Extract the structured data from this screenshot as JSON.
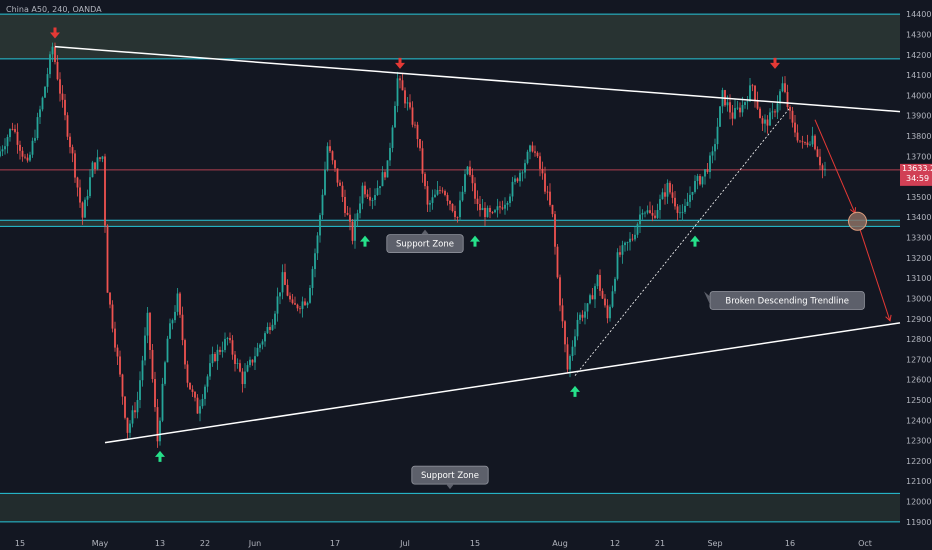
{
  "chart_data": {
    "type": "candlestick",
    "symbol": "China A50, 240, OANDA",
    "current_price": "13633.2",
    "countdown": "34:59",
    "ylim": [
      11850,
      14450
    ],
    "y_ticks": [
      11900,
      12000,
      12100,
      12200,
      12300,
      12400,
      12500,
      12600,
      12700,
      12800,
      12900,
      13000,
      13100,
      13200,
      13300,
      13400,
      13500,
      13600,
      13700,
      13800,
      13900,
      14000,
      14100,
      14200,
      14300,
      14400
    ],
    "x_ticks": [
      {
        "label": "15",
        "day": 15
      },
      {
        "label": "May",
        "day": 31
      },
      {
        "label": "13",
        "day": 43
      },
      {
        "label": "22",
        "day": 52
      },
      {
        "label": "Jun",
        "day": 62
      },
      {
        "label": "17",
        "day": 78
      },
      {
        "label": "Jul",
        "day": 92
      },
      {
        "label": "15",
        "day": 106
      },
      {
        "label": "Aug",
        "day": 123
      },
      {
        "label": "12",
        "day": 134
      },
      {
        "label": "21",
        "day": 143
      },
      {
        "label": "Sep",
        "day": 154
      },
      {
        "label": "16",
        "day": 169
      },
      {
        "label": "Oct",
        "day": 184
      }
    ],
    "x_range_days": [
      11,
      191
    ],
    "ohlc_keypoints": [
      {
        "day": 11,
        "price": 13700
      },
      {
        "day": 14,
        "price": 13850
      },
      {
        "day": 17,
        "price": 13650
      },
      {
        "day": 20,
        "price": 13980
      },
      {
        "day": 22,
        "price": 14240
      },
      {
        "day": 24,
        "price": 13950
      },
      {
        "day": 26,
        "price": 13700
      },
      {
        "day": 28,
        "price": 13400
      },
      {
        "day": 30,
        "price": 13650
      },
      {
        "day": 32,
        "price": 13700
      },
      {
        "day": 33,
        "price": 13050
      },
      {
        "day": 35,
        "price": 12700
      },
      {
        "day": 37,
        "price": 12350
      },
      {
        "day": 39,
        "price": 12500
      },
      {
        "day": 41,
        "price": 12900
      },
      {
        "day": 43,
        "price": 12300
      },
      {
        "day": 45,
        "price": 12800
      },
      {
        "day": 47,
        "price": 13000
      },
      {
        "day": 49,
        "price": 12600
      },
      {
        "day": 51,
        "price": 12450
      },
      {
        "day": 54,
        "price": 12700
      },
      {
        "day": 57,
        "price": 12800
      },
      {
        "day": 60,
        "price": 12600
      },
      {
        "day": 63,
        "price": 12750
      },
      {
        "day": 66,
        "price": 12900
      },
      {
        "day": 68,
        "price": 13100
      },
      {
        "day": 70,
        "price": 12950
      },
      {
        "day": 73,
        "price": 13000
      },
      {
        "day": 75,
        "price": 13300
      },
      {
        "day": 77,
        "price": 13750
      },
      {
        "day": 80,
        "price": 13500
      },
      {
        "day": 82,
        "price": 13300
      },
      {
        "day": 84,
        "price": 13550
      },
      {
        "day": 86,
        "price": 13500
      },
      {
        "day": 89,
        "price": 13650
      },
      {
        "day": 91,
        "price": 14080
      },
      {
        "day": 93,
        "price": 13950
      },
      {
        "day": 95,
        "price": 13800
      },
      {
        "day": 97,
        "price": 13450
      },
      {
        "day": 100,
        "price": 13550
      },
      {
        "day": 103,
        "price": 13400
      },
      {
        "day": 105,
        "price": 13650
      },
      {
        "day": 107,
        "price": 13450
      },
      {
        "day": 110,
        "price": 13400
      },
      {
        "day": 113,
        "price": 13500
      },
      {
        "day": 116,
        "price": 13650
      },
      {
        "day": 118,
        "price": 13750
      },
      {
        "day": 120,
        "price": 13600
      },
      {
        "day": 122,
        "price": 13400
      },
      {
        "day": 123,
        "price": 13100
      },
      {
        "day": 125,
        "price": 12650
      },
      {
        "day": 127,
        "price": 12900
      },
      {
        "day": 129,
        "price": 12950
      },
      {
        "day": 131,
        "price": 13100
      },
      {
        "day": 133,
        "price": 12900
      },
      {
        "day": 135,
        "price": 13200
      },
      {
        "day": 138,
        "price": 13300
      },
      {
        "day": 140,
        "price": 13450
      },
      {
        "day": 142,
        "price": 13400
      },
      {
        "day": 145,
        "price": 13550
      },
      {
        "day": 148,
        "price": 13400
      },
      {
        "day": 150,
        "price": 13550
      },
      {
        "day": 152,
        "price": 13600
      },
      {
        "day": 154,
        "price": 13700
      },
      {
        "day": 156,
        "price": 14000
      },
      {
        "day": 158,
        "price": 13900
      },
      {
        "day": 160,
        "price": 13950
      },
      {
        "day": 162,
        "price": 14050
      },
      {
        "day": 164,
        "price": 13850
      },
      {
        "day": 166,
        "price": 13900
      },
      {
        "day": 168,
        "price": 14050
      },
      {
        "day": 170,
        "price": 13850
      },
      {
        "day": 172,
        "price": 13750
      },
      {
        "day": 174,
        "price": 13800
      },
      {
        "day": 176,
        "price": 13633
      }
    ],
    "zones": [
      {
        "name": "resistance-zone",
        "from": 14180,
        "to": 14400,
        "color": "#3a4a3f"
      },
      {
        "name": "support-zone-mid",
        "from": 13355,
        "to": 13385,
        "color": "#3a4a3f"
      },
      {
        "name": "support-zone-bottom",
        "from": 11900,
        "to": 12040,
        "color": "#2f3e37"
      }
    ],
    "horizontal_lines": [
      {
        "price": 14400,
        "color": "#26c6da"
      },
      {
        "price": 14180,
        "color": "#26c6da"
      },
      {
        "price": 13385,
        "color": "#26c6da"
      },
      {
        "price": 13355,
        "color": "#26c6da"
      },
      {
        "price": 12040,
        "color": "#26c6da"
      },
      {
        "price": 11900,
        "color": "#26c6da"
      },
      {
        "price": 13633,
        "color": "#b04050"
      }
    ],
    "trendlines": [
      {
        "name": "descending-trendline",
        "from": {
          "day": 22,
          "price": 14240
        },
        "to": {
          "day": 191,
          "price": 13920
        },
        "color": "#ffffff",
        "style": "solid"
      },
      {
        "name": "ascending-trendline",
        "from": {
          "day": 32,
          "price": 12290
        },
        "to": {
          "day": 191,
          "price": 12880
        },
        "color": "#ffffff",
        "style": "solid"
      },
      {
        "name": "broken-descending-trendline",
        "from": {
          "day": 126,
          "price": 12620
        },
        "to": {
          "day": 169,
          "price": 13940
        },
        "color": "#ffffff",
        "style": "dashed"
      }
    ],
    "projection": [
      {
        "from": {
          "day": 174,
          "price": 13880
        },
        "to": {
          "day": 182,
          "price": 13420
        }
      },
      {
        "from": {
          "day": 183,
          "price": 13340
        },
        "to": {
          "day": 189,
          "price": 12890
        }
      }
    ],
    "target_circle": {
      "day": 182.5,
      "price": 13380
    },
    "arrows_down": [
      {
        "day": 22,
        "price": 14300
      },
      {
        "day": 91,
        "price": 14150
      },
      {
        "day": 166,
        "price": 14150
      }
    ],
    "arrows_up": [
      {
        "day": 43,
        "price": 12230
      },
      {
        "day": 84,
        "price": 13290
      },
      {
        "day": 106,
        "price": 13290
      },
      {
        "day": 126,
        "price": 12550
      },
      {
        "day": 150,
        "price": 13290
      }
    ],
    "annotations": [
      {
        "text": "Support Zone",
        "day": 96,
        "price": 13270,
        "pointer": "up"
      },
      {
        "text": "Broken Descending Trendline",
        "day": 153,
        "price": 12990,
        "pointer": "left"
      },
      {
        "text": "Support Zone",
        "day": 101,
        "price": 12130,
        "pointer": "down"
      }
    ]
  }
}
